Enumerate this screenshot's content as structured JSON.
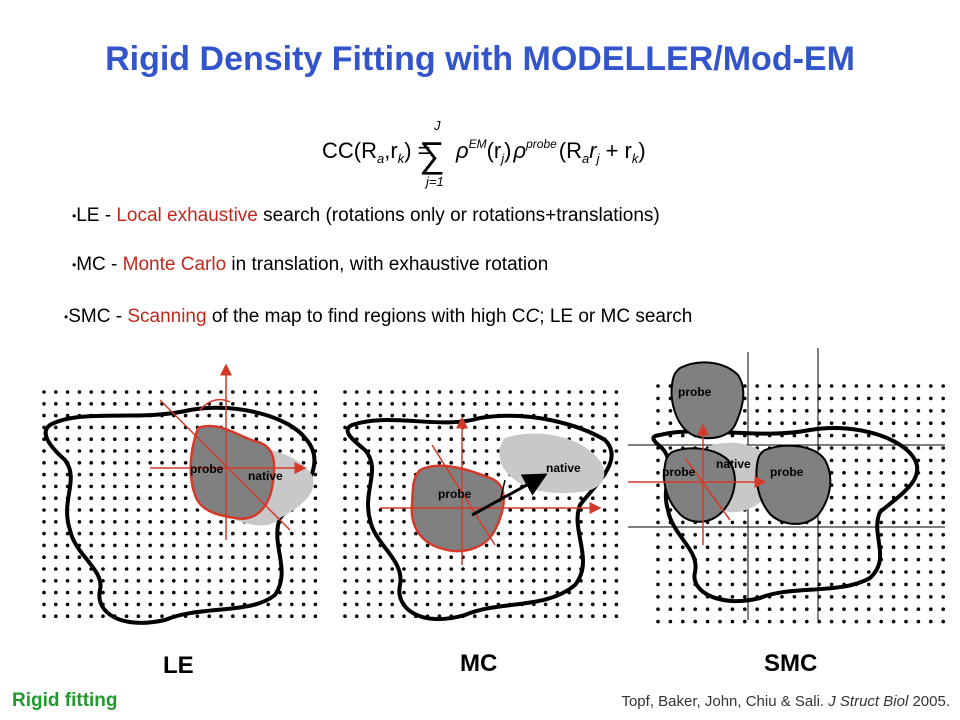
{
  "title": "Rigid Density Fitting with MODELLER/Mod-EM",
  "equation": {
    "lhs": "CC(R",
    "sub_a": "a",
    "comma_r": ",r",
    "sub_k": "k",
    "eq_close": ") =",
    "sum_top": "J",
    "sum_bottom": "j=1",
    "rho1": "ρ",
    "sup_em": "EM",
    "r_j": "(r",
    "sub_j": "j",
    "close1": ")",
    "rho2": "ρ",
    "sup_probe": "probe",
    "arg_open": "(R",
    "sub_a2": "a",
    "r_j2": "r",
    "sub_j2": "j",
    "plus": " + r",
    "sub_k2": "k",
    "close2": ")"
  },
  "bullets": [
    {
      "abbr": "LE",
      "sep": " - ",
      "highlight": "Local exhaustive",
      "rest": " search (rotations only or rotations+translations)"
    },
    {
      "abbr": "MC",
      "sep": " - ",
      "highlight": "Monte Carlo",
      "rest": " in translation, with exhaustive rotation"
    },
    {
      "abbr": "SMC",
      "sep": " - ",
      "highlight": "Scanning",
      "rest_a": " of the map to find regions with high C",
      "rest_ital": "C",
      "rest_b": ";  LE or MC search"
    }
  ],
  "panels": {
    "le": {
      "label": "LE",
      "probe": "probe",
      "native": "native"
    },
    "mc": {
      "label": "MC",
      "probe": "probe",
      "native": "native"
    },
    "smc": {
      "label": "SMC",
      "probe_top": "probe",
      "probe_left": "probe",
      "probe_right": "probe",
      "native": "native"
    }
  },
  "footer": {
    "left": "Rigid fitting",
    "citation_authors": "Topf, Baker, John, Chiu & Sali. ",
    "citation_journal": "J Struct Biol",
    "citation_year": " 2005."
  },
  "colors": {
    "title": "#3355cc",
    "highlight": "#c0281c",
    "footer_left": "#1f9a2b",
    "probe_fill": "#808080",
    "native_fill": "#c8c8c8",
    "arrow": "#d43a2a"
  }
}
